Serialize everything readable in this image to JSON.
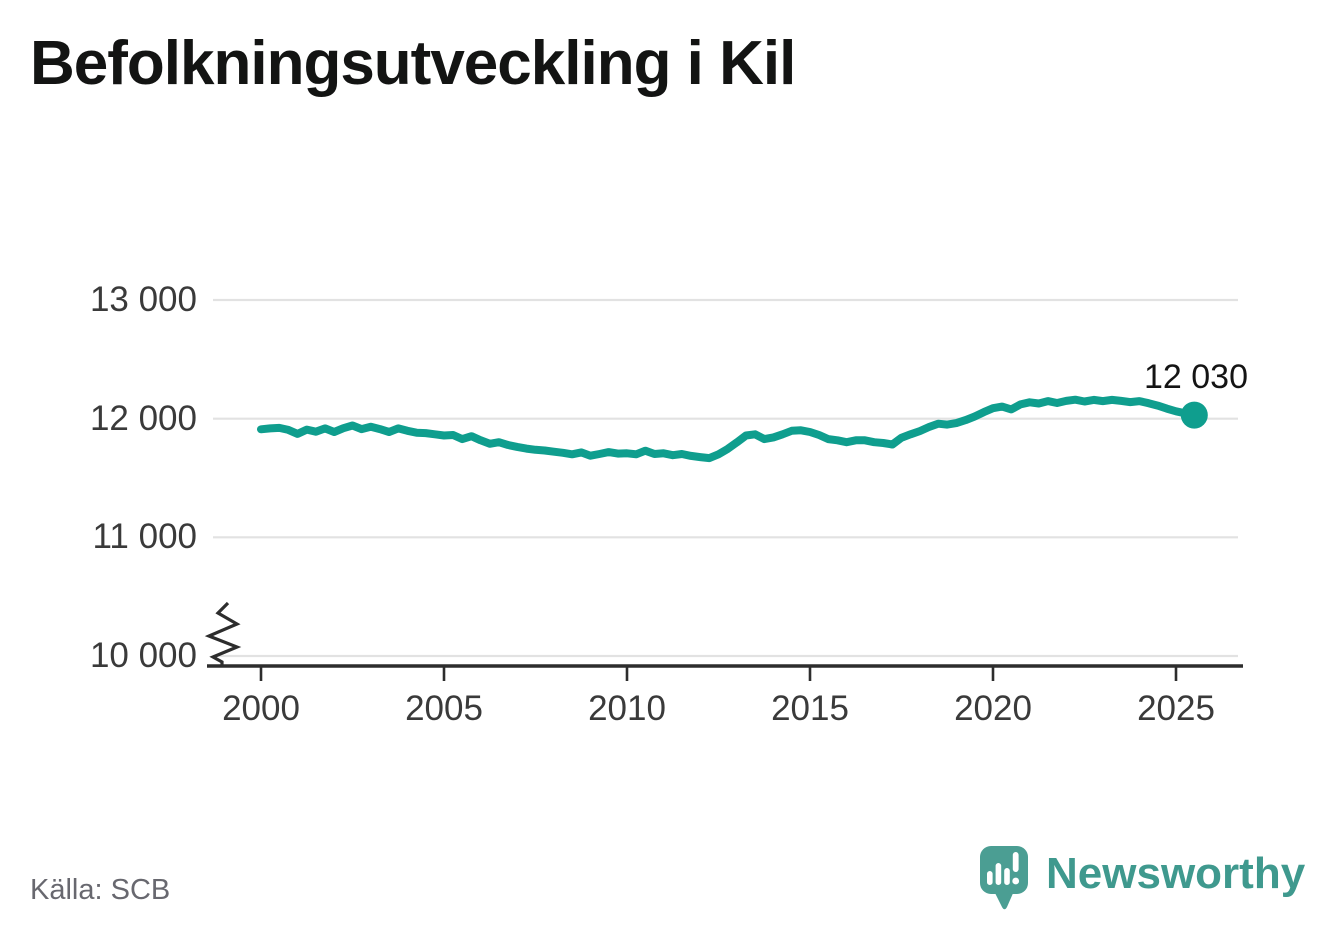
{
  "header": {
    "title": "Befolkningsutveckling i Kil"
  },
  "footer": {
    "source": "Källa: SCB",
    "brand": "Newsworthy"
  },
  "chart_data": {
    "type": "line",
    "title": "Befolkningsutveckling i Kil",
    "xlabel": "",
    "ylabel": "",
    "x_tick_labels": [
      "2000",
      "2005",
      "2010",
      "2015",
      "2020",
      "2025"
    ],
    "y_tick_labels": [
      "13 000",
      "12 000",
      "11 000",
      "10 000"
    ],
    "y_tick_values": [
      13000,
      12000,
      11000,
      10000
    ],
    "ylim": [
      10000,
      13000
    ],
    "xlim": [
      1998.6,
      2027.4
    ],
    "grid": "horizontal",
    "axis_break_at_bottom": true,
    "legend_position": "none",
    "line_color": "#0f9e8e",
    "end_label": "12 030",
    "end_value": 12030,
    "end_year": 2025.5,
    "series": [
      {
        "points": [
          [
            2000.0,
            11910
          ],
          [
            2000.25,
            11918
          ],
          [
            2000.5,
            11922
          ],
          [
            2000.75,
            11905
          ],
          [
            2001.0,
            11872
          ],
          [
            2001.25,
            11908
          ],
          [
            2001.5,
            11890
          ],
          [
            2001.75,
            11918
          ],
          [
            2002.0,
            11888
          ],
          [
            2002.25,
            11920
          ],
          [
            2002.5,
            11942
          ],
          [
            2002.75,
            11912
          ],
          [
            2003.0,
            11932
          ],
          [
            2003.25,
            11912
          ],
          [
            2003.5,
            11888
          ],
          [
            2003.75,
            11918
          ],
          [
            2004.0,
            11898
          ],
          [
            2004.25,
            11882
          ],
          [
            2004.5,
            11878
          ],
          [
            2004.75,
            11868
          ],
          [
            2005.0,
            11858
          ],
          [
            2005.25,
            11862
          ],
          [
            2005.5,
            11828
          ],
          [
            2005.75,
            11852
          ],
          [
            2006.0,
            11818
          ],
          [
            2006.25,
            11788
          ],
          [
            2006.5,
            11802
          ],
          [
            2006.75,
            11778
          ],
          [
            2007.0,
            11762
          ],
          [
            2007.25,
            11748
          ],
          [
            2007.5,
            11738
          ],
          [
            2007.75,
            11732
          ],
          [
            2008.0,
            11722
          ],
          [
            2008.25,
            11712
          ],
          [
            2008.5,
            11700
          ],
          [
            2008.75,
            11716
          ],
          [
            2009.0,
            11688
          ],
          [
            2009.25,
            11702
          ],
          [
            2009.5,
            11718
          ],
          [
            2009.75,
            11706
          ],
          [
            2010.0,
            11708
          ],
          [
            2010.25,
            11700
          ],
          [
            2010.5,
            11730
          ],
          [
            2010.75,
            11702
          ],
          [
            2011.0,
            11708
          ],
          [
            2011.25,
            11692
          ],
          [
            2011.5,
            11702
          ],
          [
            2011.75,
            11686
          ],
          [
            2012.0,
            11676
          ],
          [
            2012.25,
            11668
          ],
          [
            2012.5,
            11700
          ],
          [
            2012.75,
            11745
          ],
          [
            2013.0,
            11800
          ],
          [
            2013.25,
            11858
          ],
          [
            2013.5,
            11868
          ],
          [
            2013.75,
            11828
          ],
          [
            2014.0,
            11842
          ],
          [
            2014.25,
            11868
          ],
          [
            2014.5,
            11898
          ],
          [
            2014.75,
            11902
          ],
          [
            2015.0,
            11888
          ],
          [
            2015.25,
            11862
          ],
          [
            2015.5,
            11828
          ],
          [
            2015.75,
            11818
          ],
          [
            2016.0,
            11802
          ],
          [
            2016.25,
            11818
          ],
          [
            2016.5,
            11818
          ],
          [
            2016.75,
            11802
          ],
          [
            2017.0,
            11795
          ],
          [
            2017.25,
            11782
          ],
          [
            2017.5,
            11840
          ],
          [
            2017.75,
            11868
          ],
          [
            2018.0,
            11895
          ],
          [
            2018.25,
            11930
          ],
          [
            2018.5,
            11958
          ],
          [
            2018.75,
            11950
          ],
          [
            2019.0,
            11963
          ],
          [
            2019.25,
            11988
          ],
          [
            2019.5,
            12018
          ],
          [
            2019.75,
            12055
          ],
          [
            2020.0,
            12088
          ],
          [
            2020.25,
            12102
          ],
          [
            2020.5,
            12078
          ],
          [
            2020.75,
            12120
          ],
          [
            2021.0,
            12138
          ],
          [
            2021.25,
            12128
          ],
          [
            2021.5,
            12148
          ],
          [
            2021.75,
            12132
          ],
          [
            2022.0,
            12150
          ],
          [
            2022.25,
            12160
          ],
          [
            2022.5,
            12145
          ],
          [
            2022.75,
            12158
          ],
          [
            2023.0,
            12148
          ],
          [
            2023.25,
            12158
          ],
          [
            2023.5,
            12150
          ],
          [
            2023.75,
            12140
          ],
          [
            2024.0,
            12148
          ],
          [
            2024.25,
            12130
          ],
          [
            2024.5,
            12110
          ],
          [
            2024.75,
            12085
          ],
          [
            2025.0,
            12062
          ],
          [
            2025.25,
            12045
          ],
          [
            2025.5,
            12030
          ]
        ]
      }
    ]
  },
  "colors": {
    "line": "#0f9e8e",
    "grid": "#e2e2e2",
    "axis": "#2d2d2d",
    "title_text": "#131413",
    "tick_text": "#3a3a3a",
    "source_text": "#68686f",
    "brand_teal": "#3f998e",
    "logo_bubble": "#4b9e93"
  }
}
